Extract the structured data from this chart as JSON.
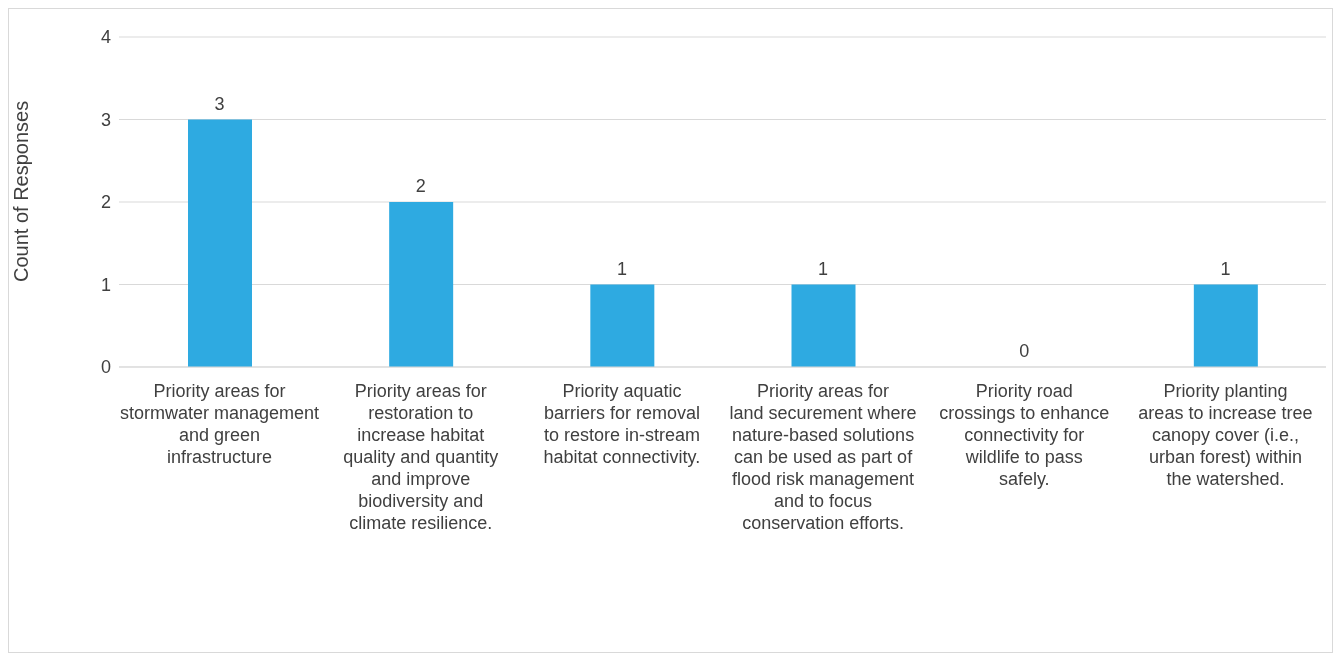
{
  "chart_data": {
    "type": "bar",
    "ylabel": "Count of Responses",
    "categories": [
      "Priority areas for stormwater management and green infrastructure",
      "Priority areas for restoration to increase habitat quality and quantity and improve biodiversity and climate resilience.",
      "Priority aquatic barriers for removal to restore in-stream habitat connectivity.",
      "Priority areas for land securement where nature-based solutions can be used as part of flood risk management and to focus conservation efforts.",
      "Priority road crossings to enhance connectivity for wildlife to pass safely.",
      "Priority planting areas to increase tree canopy cover (i.e., urban forest) within the watershed."
    ],
    "values": [
      3,
      2,
      1,
      1,
      0,
      1
    ],
    "color": "#2eaae1",
    "ylim": [
      0,
      4
    ],
    "yticks": [
      0,
      1,
      2,
      3,
      4
    ],
    "grid": "y",
    "data_labels": true,
    "legend": false
  }
}
